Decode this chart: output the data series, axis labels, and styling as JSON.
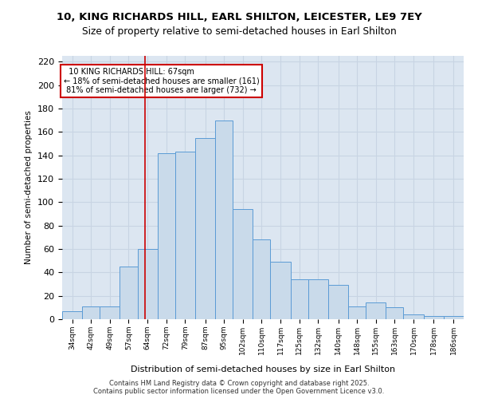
{
  "title_line1": "10, KING RICHARDS HILL, EARL SHILTON, LEICESTER, LE9 7EY",
  "title_line2": "Size of property relative to semi-detached houses in Earl Shilton",
  "xlabel": "Distribution of semi-detached houses by size in Earl Shilton",
  "ylabel": "Number of semi-detached properties",
  "footnote": "Contains HM Land Registry data © Crown copyright and database right 2025.\nContains public sector information licensed under the Open Government Licence v3.0.",
  "bin_labels": [
    "34sqm",
    "42sqm",
    "49sqm",
    "57sqm",
    "64sqm",
    "72sqm",
    "79sqm",
    "87sqm",
    "95sqm",
    "102sqm",
    "110sqm",
    "117sqm",
    "125sqm",
    "132sqm",
    "140sqm",
    "148sqm",
    "155sqm",
    "163sqm",
    "170sqm",
    "178sqm",
    "186sqm"
  ],
  "bar_values": [
    7,
    11,
    11,
    45,
    60,
    142,
    143,
    155,
    170,
    94,
    68,
    49,
    34,
    34,
    29,
    11,
    14,
    10,
    4,
    3,
    3
  ],
  "bin_edges": [
    34,
    42,
    49,
    57,
    64,
    72,
    79,
    87,
    95,
    102,
    110,
    117,
    125,
    132,
    140,
    148,
    155,
    163,
    170,
    178,
    186,
    194
  ],
  "property_size": 67,
  "property_label": "10 KING RICHARDS HILL: 67sqm",
  "pct_smaller": 18,
  "pct_larger": 81,
  "count_smaller": 161,
  "count_larger": 732,
  "bar_color": "#c9daea",
  "bar_edge_color": "#5b9bd5",
  "vline_color": "#cc0000",
  "annotation_box_color": "#cc0000",
  "grid_color": "#c8d4e3",
  "background_color": "#dce6f1",
  "ylim": [
    0,
    225
  ],
  "yticks": [
    0,
    20,
    40,
    60,
    80,
    100,
    120,
    140,
    160,
    180,
    200,
    220
  ]
}
